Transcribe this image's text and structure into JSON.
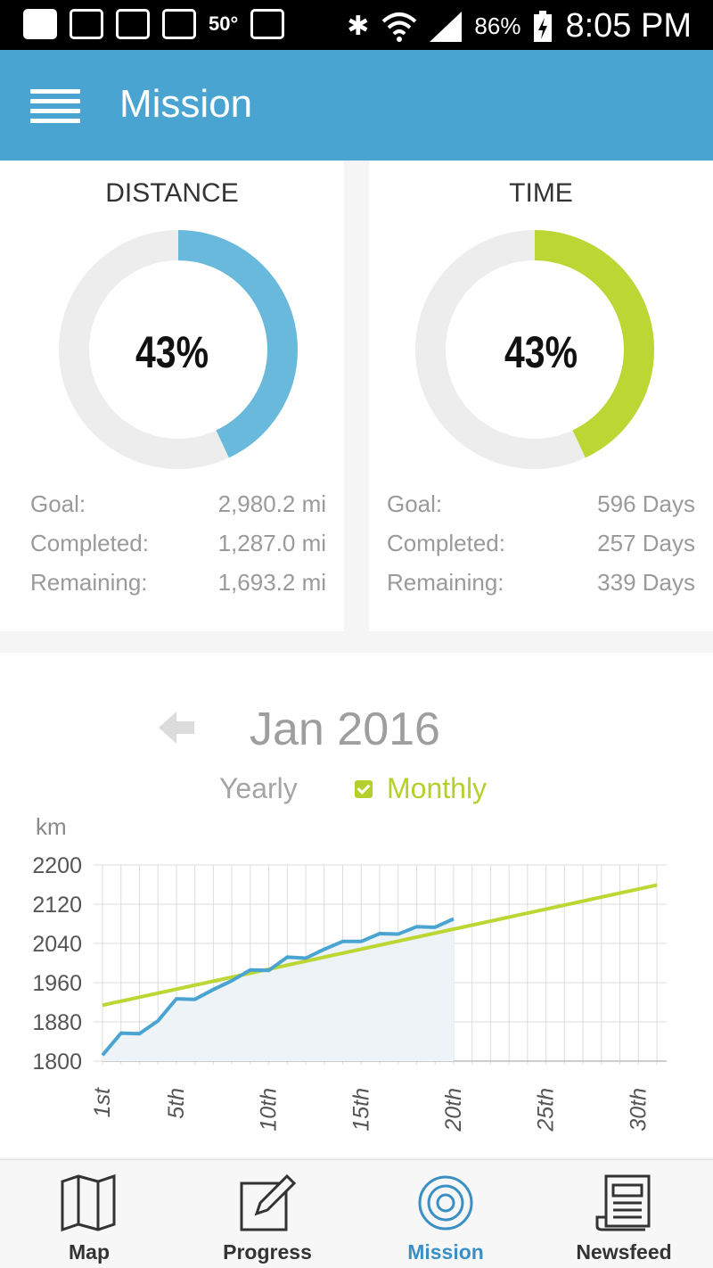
{
  "status_bar": {
    "icons": [
      "chat-bubble-icon",
      "p-app-icon",
      "gallery-icon",
      "gmail-icon",
      "temperature-icon",
      "gmail-icon",
      "bluetooth-icon",
      "wifi-icon",
      "signal-icon",
      "battery-charging-icon"
    ],
    "temperature": "50°",
    "battery": "86%",
    "time": "8:05 PM"
  },
  "app_bar": {
    "title": "Mission",
    "color": "#4aa4d1"
  },
  "distance": {
    "title": "DISTANCE",
    "percent_label": "43%",
    "percent": 0.43,
    "color": "#69b9dd",
    "rows": [
      {
        "label": "Goal:",
        "value": "2,980.2 mi"
      },
      {
        "label": "Completed:",
        "value": "1,287.0 mi"
      },
      {
        "label": "Remaining:",
        "value": "1,693.2 mi"
      }
    ]
  },
  "time": {
    "title": "TIME",
    "percent_label": "43%",
    "percent": 0.43,
    "color": "#bcd634",
    "rows": [
      {
        "label": "Goal:",
        "value": "596 Days"
      },
      {
        "label": "Completed:",
        "value": "257 Days"
      },
      {
        "label": "Remaining:",
        "value": "339 Days"
      }
    ]
  },
  "chart_panel": {
    "month_label": "Jan 2016",
    "yearly_label": "Yearly",
    "monthly_label": "Monthly",
    "monthly_checked": true,
    "unit_label": "km"
  },
  "chart_data": {
    "type": "line",
    "ylabel": "km",
    "ylim": [
      1800,
      2200
    ],
    "xlim": [
      1,
      31
    ],
    "yticks": [
      1800,
      1880,
      1960,
      2040,
      2120,
      2200
    ],
    "xticks": [
      {
        "value": 1,
        "label": "1st"
      },
      {
        "value": 5,
        "label": "5th"
      },
      {
        "value": 10,
        "label": "10th"
      },
      {
        "value": 15,
        "label": "15th"
      },
      {
        "value": 20,
        "label": "20th"
      },
      {
        "value": 25,
        "label": "25th"
      },
      {
        "value": 30,
        "label": "30th"
      }
    ],
    "grid": true,
    "series": [
      {
        "color": "#4aa4d1",
        "fill": true,
        "x": [
          1,
          2,
          3,
          4,
          5,
          6,
          7,
          8,
          9,
          10,
          11,
          12,
          13,
          14,
          15,
          16,
          17,
          18,
          19,
          20
        ],
        "values": [
          1812,
          1857,
          1856,
          1882,
          1927,
          1926,
          1946,
          1964,
          1986,
          1985,
          2012,
          2010,
          2028,
          2044,
          2044,
          2060,
          2059,
          2074,
          2073,
          2090
        ]
      },
      {
        "color": "#bcd634",
        "fill": false,
        "x": [
          1,
          31
        ],
        "values": [
          1914,
          2159
        ]
      }
    ]
  },
  "bottom_nav": {
    "items": [
      {
        "label": "Map",
        "icon": "map-icon",
        "active": false
      },
      {
        "label": "Progress",
        "icon": "progress-edit-icon",
        "active": false
      },
      {
        "label": "Mission",
        "icon": "target-icon",
        "active": true
      },
      {
        "label": "Newsfeed",
        "icon": "newspaper-icon",
        "active": false
      }
    ]
  }
}
